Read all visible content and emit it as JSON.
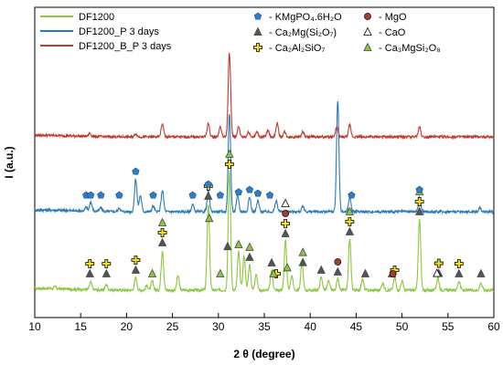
{
  "chart_data": {
    "type": "line",
    "xlabel": "2 θ (degree)",
    "ylabel": "I (a.u.)",
    "xlim": [
      10,
      60
    ],
    "x_ticks": [
      10,
      15,
      20,
      25,
      30,
      35,
      40,
      45,
      50,
      55,
      60
    ],
    "y_ticks_shown": false,
    "grid": false,
    "legend_placement": "top",
    "series": [
      {
        "name": "DF1200",
        "color": "#8dc63f",
        "peaks": [
          [
            12.2,
            2
          ],
          [
            16.1,
            8
          ],
          [
            17.8,
            6
          ],
          [
            21.0,
            14
          ],
          [
            22.2,
            5
          ],
          [
            22.8,
            10
          ],
          [
            23.9,
            44
          ],
          [
            25.6,
            16
          ],
          [
            28.9,
            95
          ],
          [
            31.2,
            130
          ],
          [
            32.2,
            42
          ],
          [
            32.8,
            38
          ],
          [
            33.4,
            28
          ],
          [
            34.1,
            18
          ],
          [
            35.8,
            22
          ],
          [
            37.3,
            54
          ],
          [
            38.0,
            16
          ],
          [
            39.1,
            30
          ],
          [
            41.2,
            14
          ],
          [
            42.0,
            10
          ],
          [
            43.0,
            12
          ],
          [
            44.3,
            56
          ],
          [
            45.7,
            12
          ],
          [
            47.9,
            8
          ],
          [
            49.2,
            14
          ],
          [
            50.0,
            10
          ],
          [
            51.9,
            78
          ],
          [
            53.9,
            14
          ],
          [
            56.2,
            10
          ],
          [
            58.6,
            8
          ]
        ]
      },
      {
        "name": "DF1200_P 3 days",
        "color": "#2a7ab8",
        "peaks": [
          [
            15.6,
            4
          ],
          [
            16.1,
            10
          ],
          [
            17.2,
            4
          ],
          [
            19.2,
            4
          ],
          [
            21.0,
            36
          ],
          [
            21.5,
            18
          ],
          [
            22.9,
            6
          ],
          [
            23.9,
            24
          ],
          [
            27.2,
            8
          ],
          [
            28.9,
            22
          ],
          [
            31.2,
            108
          ],
          [
            32.1,
            18
          ],
          [
            33.4,
            16
          ],
          [
            34.3,
            12
          ],
          [
            36.3,
            12
          ],
          [
            39.2,
            6
          ],
          [
            43.0,
            122
          ],
          [
            44.3,
            16
          ],
          [
            51.9,
            16
          ],
          [
            58.5,
            4
          ]
        ]
      },
      {
        "name": "DF1200_B_P 3 days",
        "color": "#c0392b",
        "peaks": [
          [
            16.0,
            4
          ],
          [
            21.0,
            4
          ],
          [
            23.9,
            16
          ],
          [
            28.9,
            16
          ],
          [
            30.2,
            12
          ],
          [
            31.2,
            100
          ],
          [
            32.2,
            12
          ],
          [
            33.3,
            6
          ],
          [
            34.2,
            6
          ],
          [
            35.4,
            8
          ],
          [
            36.4,
            16
          ],
          [
            37.2,
            6
          ],
          [
            39.2,
            6
          ],
          [
            42.9,
            12
          ],
          [
            44.3,
            14
          ],
          [
            51.9,
            12
          ]
        ]
      }
    ],
    "phase_legend": [
      {
        "label": "- KMgPO₄.6H₂O",
        "marker": "pentagon",
        "color": "#2f7dc4"
      },
      {
        "label": "- Ca₂Mg(Si₂O₇)",
        "marker": "triangle",
        "color": "#555555"
      },
      {
        "label": "- Ca₂Al₂SiO₇",
        "marker": "cross",
        "color": "#f7e017"
      },
      {
        "label": "- MgO",
        "marker": "circle",
        "color": "#b03a2e"
      },
      {
        "label": "- CaO",
        "marker": "open-triangle",
        "color": "#ffffff"
      },
      {
        "label": "- Ca₃MgSi₂O₈",
        "marker": "triangle",
        "color": "#8dc63f"
      }
    ],
    "phase_markers": [
      {
        "phase": 1,
        "x": [
          16.0,
          17.8,
          21.0,
          23.9,
          28.9,
          31.0,
          33.4,
          35.8,
          37.3,
          39.2,
          41.2,
          43.0,
          44.3,
          46.0,
          48.9,
          51.9,
          54.0,
          56.2,
          58.6
        ]
      },
      {
        "phase": 2,
        "x": [
          16.0,
          17.8,
          21.0,
          23.9,
          28.9,
          31.2,
          36.3,
          37.3,
          44.3,
          49.2,
          51.9,
          54.0,
          56.2
        ]
      },
      {
        "phase": 3,
        "x": [
          37.3,
          43.0,
          49.0
        ]
      },
      {
        "phase": 4,
        "x": [
          37.3,
          53.8
        ]
      },
      {
        "phase": 5,
        "x": [
          22.8,
          23.9,
          29.0,
          30.2,
          31.2,
          32.2,
          33.4,
          36.0,
          37.5,
          39.2,
          44.3,
          51.9
        ]
      },
      {
        "phase": 0,
        "x": [
          15.6,
          16.1,
          17.2,
          19.2,
          21.0,
          22.9,
          27.2,
          28.9,
          30.2,
          32.2,
          33.4,
          34.3,
          35.6,
          44.5,
          51.9
        ]
      }
    ]
  }
}
